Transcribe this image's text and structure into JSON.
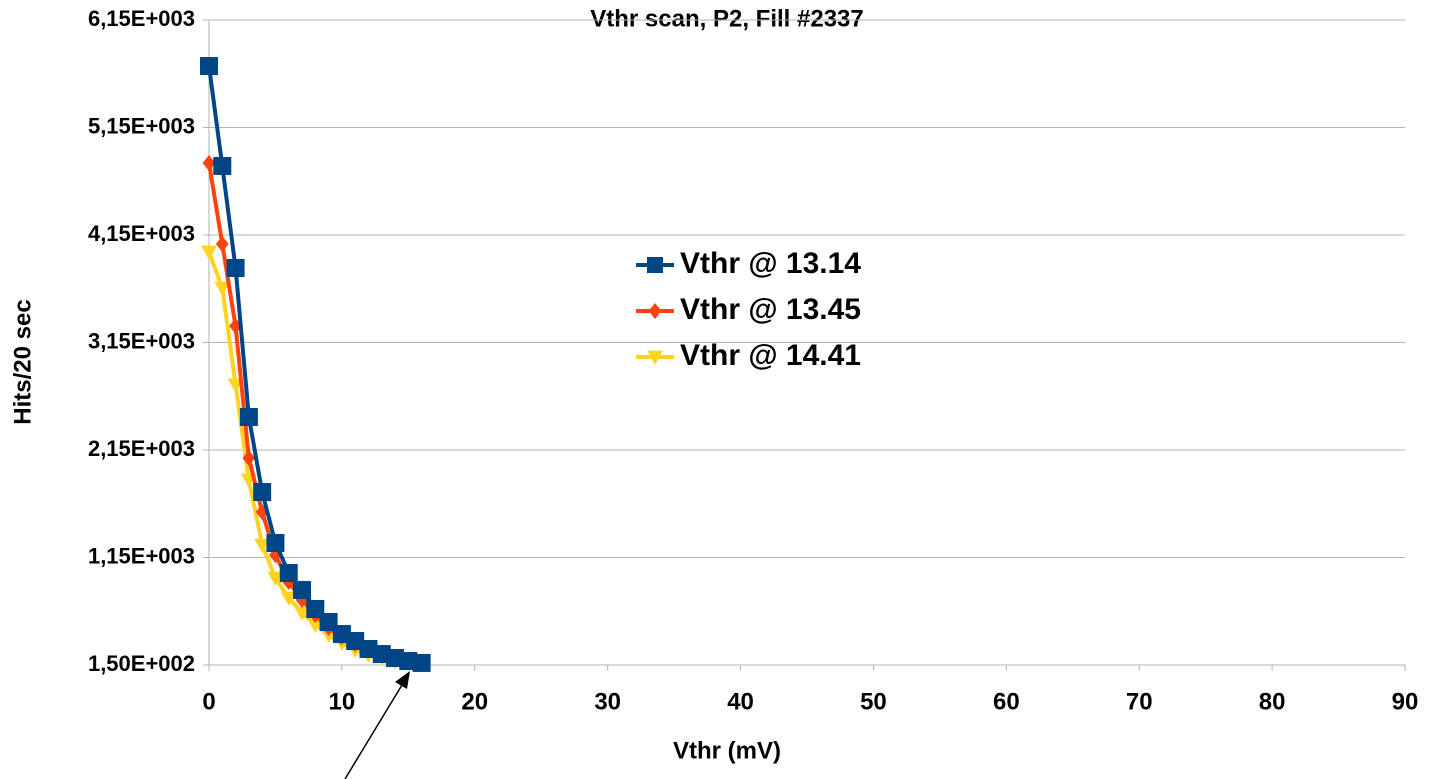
{
  "chart_data": {
    "type": "line",
    "title": "Vthr scan, P2, Fill #2337",
    "xlabel": "Vthr (mV)",
    "ylabel": "Hits/20 sec",
    "xlim": [
      0,
      90
    ],
    "xticks": [
      0,
      10,
      20,
      30,
      40,
      50,
      60,
      70,
      80,
      90
    ],
    "ylim": [
      150,
      6150
    ],
    "yticks": [
      {
        "value": 150,
        "label": "1,50E+002"
      },
      {
        "value": 1150,
        "label": "1,15E+003"
      },
      {
        "value": 2150,
        "label": "2,15E+003"
      },
      {
        "value": 3150,
        "label": "3,15E+003"
      },
      {
        "value": 4150,
        "label": "4,15E+003"
      },
      {
        "value": 5150,
        "label": "5,15E+003"
      },
      {
        "value": 6150,
        "label": "6,15E+003"
      }
    ],
    "grid": true,
    "legend": "center",
    "series": [
      {
        "name": "Vthr @ 13.14",
        "color": "#004586",
        "marker": "square",
        "x": [
          0,
          1,
          2,
          3,
          4,
          5,
          6,
          7,
          8,
          9,
          10,
          11,
          12,
          13,
          14,
          15,
          16
        ],
        "values": [
          5722,
          4792,
          3843,
          2457,
          1759,
          1285,
          1006,
          848,
          671,
          550,
          438,
          373,
          299,
          252,
          215,
          187,
          169
        ]
      },
      {
        "name": "Vthr @ 13.45",
        "color": "#ff420e",
        "marker": "diamond",
        "x": [
          0,
          1,
          2,
          3,
          4,
          5,
          6,
          7,
          8,
          9,
          10,
          11,
          12,
          13,
          14,
          15
        ],
        "values": [
          4820,
          4066,
          3303,
          2076,
          1573,
          1173,
          922,
          755,
          615,
          494,
          410,
          345,
          290,
          243,
          206,
          178
        ]
      },
      {
        "name": "Vthr @ 14.41",
        "color": "#ffd320",
        "marker": "triangle-down",
        "x": [
          0,
          1,
          2,
          3,
          4,
          5,
          6,
          7,
          8,
          9,
          10,
          11,
          12,
          13,
          14,
          15
        ],
        "values": [
          3992,
          3657,
          2755,
          1871,
          1266,
          959,
          773,
          634,
          522,
          429,
          355,
          290,
          243,
          215,
          187,
          169
        ]
      }
    ]
  }
}
